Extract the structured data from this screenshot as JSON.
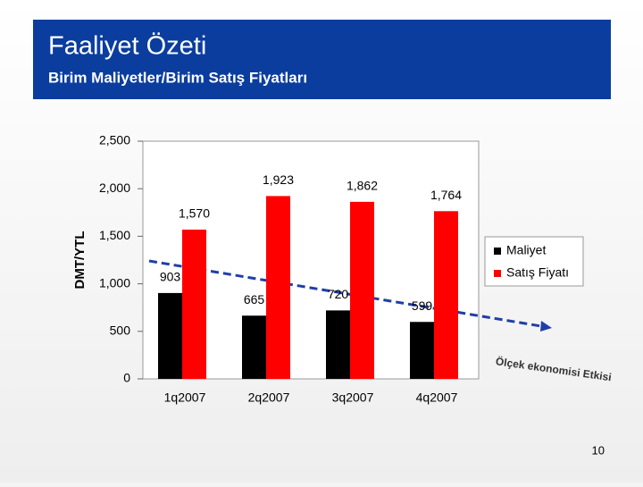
{
  "chart_data": {
    "type": "bar",
    "title": "Faaliyet Özeti",
    "subtitle": "Birim Maliyetler/Birim Satış Fiyatları",
    "y_label": "DMT/YTL",
    "categories": [
      "1q2007",
      "2q2007",
      "3q2007",
      "4q2007"
    ],
    "series": [
      {
        "name": "Maliyet",
        "color": "#000000",
        "values": [
          903,
          665,
          720,
          599
        ]
      },
      {
        "name": "Satış Fiyatı",
        "color": "#ff0000",
        "values": [
          1570,
          1923,
          1862,
          1764
        ],
        "value_labels": [
          "1,570",
          "1,923",
          "1,862",
          "1,764"
        ]
      }
    ],
    "ylim": [
      0,
      2500
    ],
    "yticks": [
      0,
      500,
      {
        "value": 1000,
        "label": "1,000"
      },
      {
        "value": 1500,
        "label": "1,500"
      },
      {
        "value": 2000,
        "label": "2,000"
      },
      {
        "value": 2500,
        "label": "2,500"
      }
    ],
    "grid": false,
    "legend": "right",
    "annotation": "Ölçek ekonomisi Etkisi",
    "page_number": "10"
  }
}
